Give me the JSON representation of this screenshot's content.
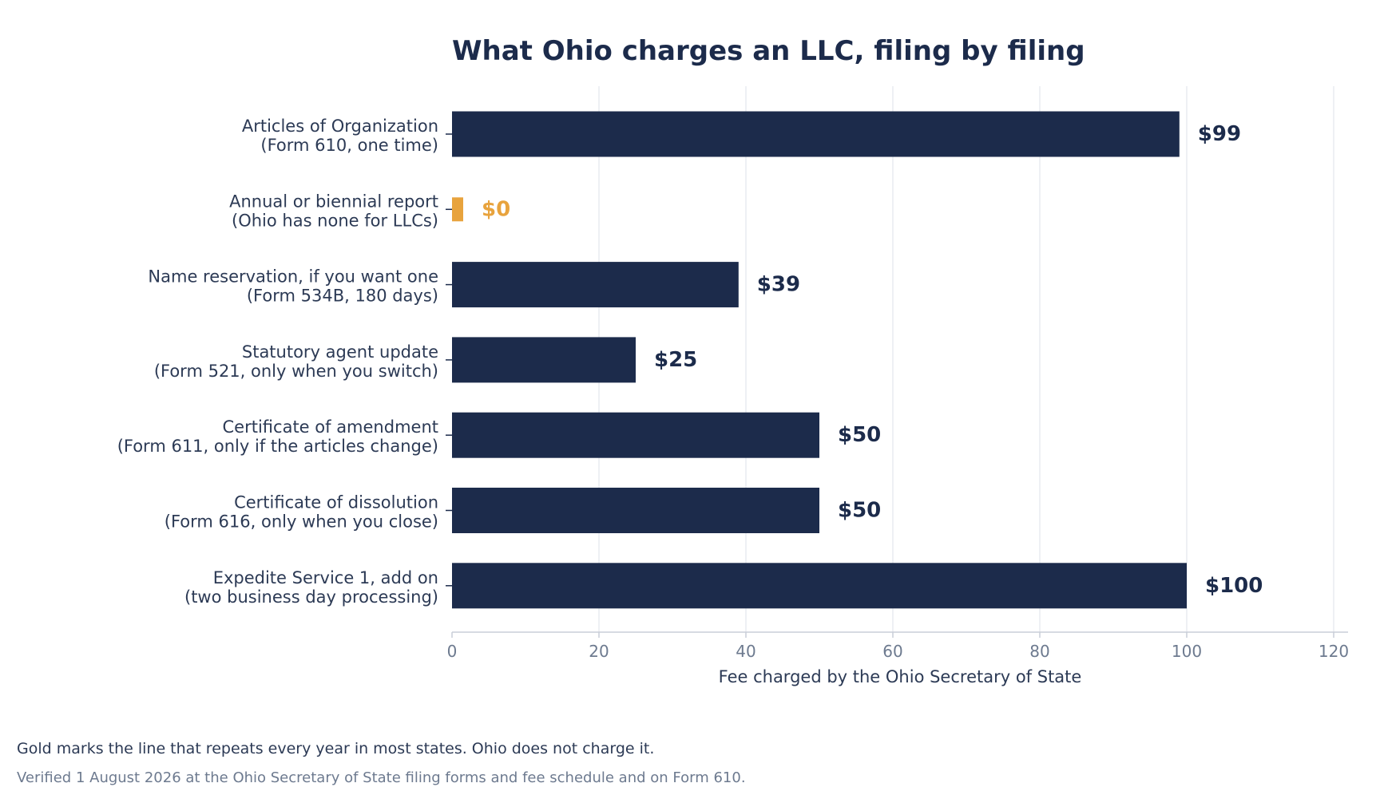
{
  "chart_data": {
    "type": "bar",
    "orientation": "horizontal",
    "title": "What Ohio charges an LLC, filing by filing",
    "xlabel": "Fee charged by the Ohio Secretary of State",
    "ylabel": "",
    "xlim": [
      0,
      120
    ],
    "xticks": [
      0,
      20,
      40,
      60,
      80,
      100,
      120
    ],
    "grid": "vertical",
    "categories": [
      [
        "Articles of Organization",
        "(Form 610, one time)"
      ],
      [
        "Annual or biennial report",
        "(Ohio has none for LLCs)"
      ],
      [
        "Name reservation, if you want one",
        "(Form 534B, 180 days)"
      ],
      [
        "Statutory agent update",
        "(Form 521, only when you switch)"
      ],
      [
        "Certificate of amendment",
        "(Form 611, only if the articles change)"
      ],
      [
        "Certificate of dissolution",
        "(Form 616, only when you close)"
      ],
      [
        "Expedite Service 1, add on",
        "(two business day processing)"
      ]
    ],
    "values": [
      99,
      0,
      39,
      25,
      50,
      50,
      100
    ],
    "value_labels": [
      "$99",
      "$0",
      "$39",
      "$25",
      "$50",
      "$50",
      "$100"
    ],
    "highlight_index": 1,
    "colors": {
      "bar": "#1c2b4b",
      "highlight": "#e8a33d",
      "axis_text": "#6d7a8f",
      "category_text": "#2c3a55",
      "title": "#1c2b4b",
      "grid": "#e9ecf1"
    }
  },
  "footnotes": {
    "note": "Gold marks the line that repeats every year in most states. Ohio does not charge it.",
    "source": "Verified 1 August 2026 at the Ohio Secretary of State filing forms and fee schedule and on Form 610."
  }
}
